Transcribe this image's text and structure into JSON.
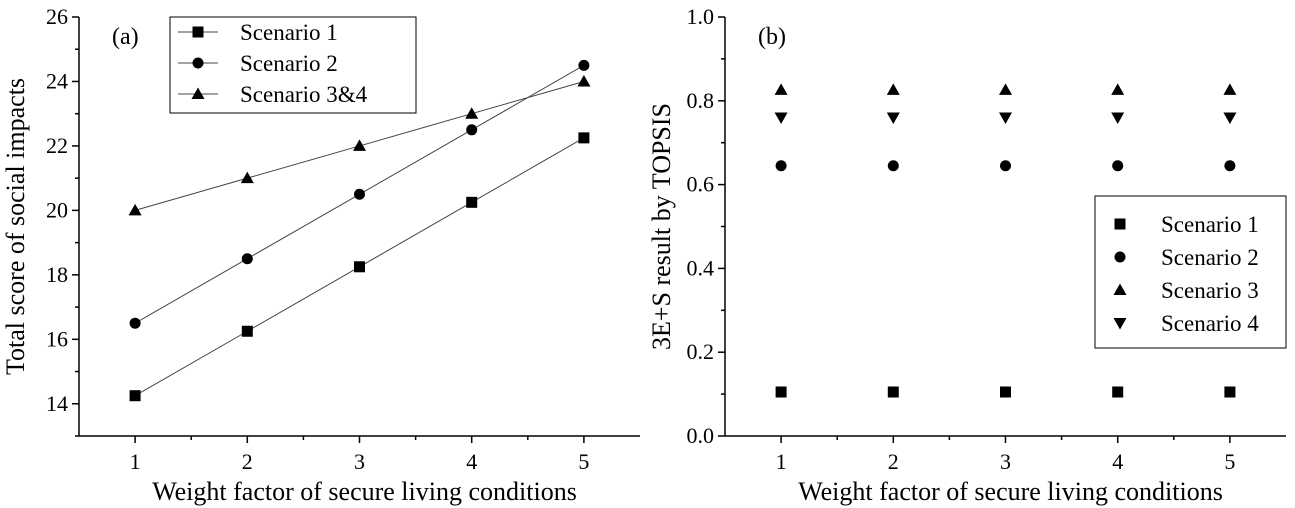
{
  "chart_data": [
    {
      "type": "line",
      "panel_label": "(a)",
      "xlabel": "Weight factor of secure living conditions",
      "ylabel": "Total score of social impacts",
      "x": [
        1,
        2,
        3,
        4,
        5
      ],
      "xlim": [
        0.5,
        5.5
      ],
      "ylim": [
        13,
        26
      ],
      "xticks": [
        "1",
        "2",
        "3",
        "4",
        "5"
      ],
      "yticks": [
        "14",
        "16",
        "18",
        "20",
        "22",
        "24",
        "26"
      ],
      "legend_position": "top",
      "series": [
        {
          "name": "Scenario 1",
          "marker": "square",
          "values": [
            14.25,
            16.25,
            18.25,
            20.25,
            22.25
          ]
        },
        {
          "name": "Scenario 2",
          "marker": "circle",
          "values": [
            16.5,
            18.5,
            20.5,
            22.5,
            24.5
          ]
        },
        {
          "name": "Scenario 3&4",
          "marker": "triangle-up",
          "values": [
            20,
            21,
            22,
            23,
            24
          ]
        }
      ]
    },
    {
      "type": "scatter",
      "panel_label": "(b)",
      "xlabel": "Weight factor of secure living conditions",
      "ylabel": "3E+S result by TOPSIS",
      "x": [
        1,
        2,
        3,
        4,
        5
      ],
      "xlim": [
        0.5,
        5.5
      ],
      "ylim": [
        0,
        1.0
      ],
      "xticks": [
        "1",
        "2",
        "3",
        "4",
        "5"
      ],
      "yticks": [
        "0.0",
        "0.2",
        "0.4",
        "0.6",
        "0.8",
        "1.0"
      ],
      "legend_position": "right",
      "series": [
        {
          "name": "Scenario 1",
          "marker": "square",
          "values": [
            0.105,
            0.105,
            0.105,
            0.105,
            0.105
          ]
        },
        {
          "name": "Scenario 2",
          "marker": "circle",
          "values": [
            0.645,
            0.645,
            0.645,
            0.645,
            0.645
          ]
        },
        {
          "name": "Scenario 3",
          "marker": "triangle-up",
          "values": [
            0.826,
            0.826,
            0.826,
            0.826,
            0.826
          ]
        },
        {
          "name": "Scenario 4",
          "marker": "triangle-down",
          "values": [
            0.76,
            0.76,
            0.76,
            0.76,
            0.76
          ]
        }
      ]
    }
  ]
}
